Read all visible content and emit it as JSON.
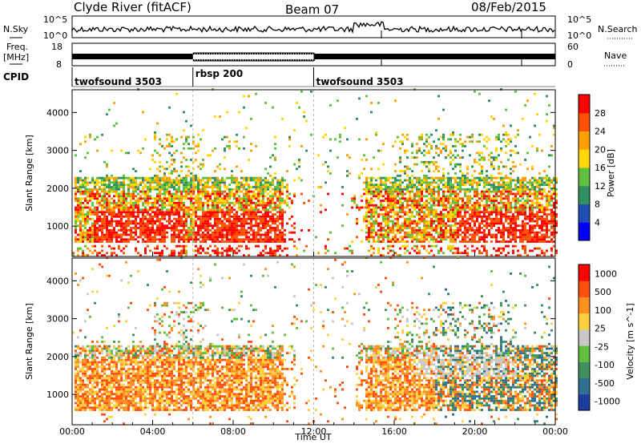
{
  "header": {
    "station": "Clyde River (fitACF)",
    "beam": "Beam 07",
    "date": "08/Feb/2015"
  },
  "top_panels": {
    "nsky_label": "N.Sky",
    "nsky_ticks": [
      "10^5",
      "10^0"
    ],
    "nsearch_label": "N.Search",
    "nsearch_ticks": [
      "10^5",
      "10^0"
    ],
    "freq_label_1": "Freq.",
    "freq_label_2": "[MHz]",
    "freq_ticks": [
      "18",
      "8"
    ],
    "nave_label": "Nave",
    "nave_ticks": [
      "60",
      "0"
    ],
    "cpid_label": "CPID",
    "cpid_segments": [
      {
        "label": "twofsound 3503",
        "start_hour": 0,
        "end_hour": 6
      },
      {
        "label": "rbsp 200",
        "start_hour": 6,
        "end_hour": 12
      },
      {
        "label": "twofsound 3503",
        "start_hour": 12,
        "end_hour": 24
      }
    ]
  },
  "chart_data": [
    {
      "type": "heatmap",
      "name": "power",
      "ylabel": "Slant Range [km]",
      "yticks": [
        1000,
        2000,
        3000,
        4000
      ],
      "ylim": [
        200,
        4600
      ],
      "xlim": [
        0,
        24
      ],
      "colorbar_label": "Power [dB]",
      "colorbar_ticks": [
        "4",
        "8",
        "12",
        "16",
        "20",
        "24",
        "28"
      ],
      "colors": [
        "#0000ff",
        "#1f4fb5",
        "#2f8f5f",
        "#5fbf3f",
        "#ffd700",
        "#ff9f00",
        "#ff5000",
        "#ff0000"
      ]
    },
    {
      "type": "heatmap",
      "name": "velocity",
      "ylabel": "Slant Range [km]",
      "yticks": [
        1000,
        2000,
        3000,
        4000
      ],
      "ylim": [
        200,
        4600
      ],
      "xlim": [
        0,
        24
      ],
      "xlabel": "Time UT",
      "xticks": [
        "00:00",
        "04:00",
        "08:00",
        "12:00",
        "16:00",
        "20:00",
        "00:00"
      ],
      "colorbar_label": "Velocity [m s^-1]",
      "colorbar_ticks": [
        "1000",
        "500",
        "100",
        "25",
        "-25",
        "-100",
        "-500",
        "-1000"
      ],
      "colors": [
        "#1c3f9f",
        "#2f6f8f",
        "#3f8f5f",
        "#5fbf3f",
        "#c8c8c8",
        "#ffd040",
        "#ff9020",
        "#ff5010",
        "#ff0000"
      ]
    }
  ]
}
